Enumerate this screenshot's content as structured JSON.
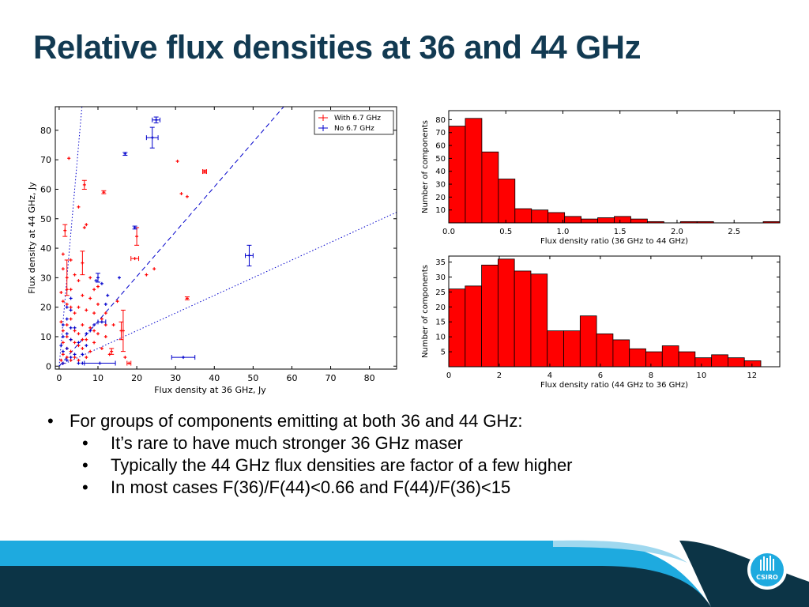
{
  "slide": {
    "title": "Relative flux densities at 36 and 44 GHz",
    "bullets": [
      {
        "level": 1,
        "text": "For groups of components emitting at both 36 and 44 GHz:"
      },
      {
        "level": 2,
        "text": "It’s rare to have much stronger 36 GHz maser"
      },
      {
        "level": 2,
        "text": "Typically the 44 GHz flux densities are factor of a few higher"
      },
      {
        "level": 2,
        "text": "In most cases F(36)/F(44)<0.66 and F(44)/F(36)<15"
      }
    ],
    "logo_text": "CSIRO",
    "colors": {
      "title": "#123a52",
      "bar": "#ff0000",
      "with": "#ff0000",
      "without": "#0000cc",
      "footer_dark": "#0c3446",
      "footer_light": "#1eaadf"
    }
  },
  "chart_data": [
    {
      "type": "scatter",
      "xlabel": "Flux density at 36 GHz, Jy",
      "ylabel": "Flux density at 44 GHz, Jy",
      "xlim": [
        -1,
        87
      ],
      "ylim": [
        -1,
        88
      ],
      "xticks": [
        0,
        10,
        20,
        30,
        40,
        50,
        60,
        70,
        80
      ],
      "yticks": [
        0,
        10,
        20,
        30,
        40,
        50,
        60,
        70,
        80
      ],
      "lines": [
        {
          "style": "dotted",
          "slope": 15
        },
        {
          "style": "dashed",
          "slope": 1.52
        },
        {
          "style": "dotted",
          "slope": 0.6
        }
      ],
      "legend": {
        "position": "top-right"
      },
      "series": [
        {
          "name": "With 6.7 GHz",
          "color": "#ff0000",
          "points": [
            [
              2.5,
              70.5,
              0,
              0
            ],
            [
              6.5,
              61.5,
              0,
              1.5
            ],
            [
              11.5,
              59,
              0,
              0.5
            ],
            [
              5,
              54,
              0,
              0
            ],
            [
              7,
              48,
              0,
              0
            ],
            [
              6.5,
              47,
              0,
              0
            ],
            [
              1.5,
              46,
              0,
              2
            ],
            [
              20,
              44,
              0,
              3
            ],
            [
              19.5,
              36.5,
              1,
              0
            ],
            [
              24.5,
              33,
              0,
              0
            ],
            [
              22.5,
              31,
              0,
              0
            ],
            [
              6,
              35,
              0,
              4
            ],
            [
              2,
              30,
              0,
              6
            ],
            [
              8,
              30,
              0,
              0
            ],
            [
              10,
              27,
              0,
              0
            ],
            [
              33,
              23,
              0,
              0.5
            ],
            [
              30.5,
              69.5,
              0,
              0
            ],
            [
              37.5,
              66,
              0.5,
              0.5
            ],
            [
              31.5,
              58.5,
              0,
              0
            ],
            [
              33,
              57.5,
              0,
              0
            ],
            [
              16,
              12,
              0,
              3
            ],
            [
              16.5,
              12,
              0,
              7
            ],
            [
              13.5,
              5,
              0,
              1
            ],
            [
              18,
              1,
              0.5,
              0
            ],
            [
              1,
              38,
              0,
              0
            ],
            [
              3,
              36,
              0,
              0
            ],
            [
              4,
              31,
              0,
              0
            ],
            [
              5,
              29,
              0,
              0
            ],
            [
              3,
              26,
              0,
              0
            ],
            [
              1,
              22,
              0,
              0
            ],
            [
              2,
              21,
              0,
              0
            ],
            [
              5,
              20,
              0,
              0
            ],
            [
              7,
              19,
              0,
              0
            ],
            [
              9,
              18,
              0,
              0
            ],
            [
              11,
              16,
              0,
              0
            ],
            [
              12,
              18,
              0,
              0
            ],
            [
              14,
              14,
              0,
              0
            ],
            [
              6,
              24,
              0,
              0
            ],
            [
              8,
              23,
              0,
              0
            ],
            [
              4,
              18,
              0,
              0
            ],
            [
              3,
              16,
              0,
              0
            ],
            [
              2,
              14,
              0,
              0
            ],
            [
              6,
              14,
              0,
              0
            ],
            [
              8,
              13,
              0,
              0
            ],
            [
              10,
              11,
              0,
              0
            ],
            [
              12,
              10,
              0,
              0
            ],
            [
              4,
              12,
              0,
              0
            ],
            [
              5,
              11,
              0,
              0
            ],
            [
              7,
              9,
              0,
              0
            ],
            [
              9,
              8,
              0,
              0
            ],
            [
              11,
              6,
              0,
              0
            ],
            [
              13,
              4,
              0,
              0
            ],
            [
              1,
              12,
              0,
              0
            ],
            [
              2,
              10,
              0,
              0
            ],
            [
              3,
              9,
              0,
              0
            ],
            [
              4,
              8,
              0,
              0
            ],
            [
              5,
              7,
              0,
              0
            ],
            [
              6,
              6,
              0,
              0
            ],
            [
              1,
              8,
              0,
              0
            ],
            [
              2,
              6,
              0,
              0
            ],
            [
              3,
              5,
              0,
              0
            ],
            [
              1,
              4,
              0,
              0
            ],
            [
              2,
              3,
              0,
              0
            ],
            [
              0.5,
              2,
              0,
              0
            ],
            [
              1,
              1,
              0,
              0
            ],
            [
              3,
              2,
              0,
              0
            ],
            [
              4,
              3,
              0,
              0
            ],
            [
              5,
              2,
              0,
              0
            ],
            [
              7,
              3,
              0,
              0
            ],
            [
              8,
              5,
              0,
              0
            ],
            [
              6,
              9,
              0,
              0
            ],
            [
              9,
              12,
              0,
              0
            ],
            [
              3,
              20,
              0,
              0
            ],
            [
              2,
              26,
              0,
              0
            ],
            [
              15,
              22,
              0,
              0
            ],
            [
              0.5,
              15,
              0,
              0
            ],
            [
              0.5,
              25,
              0,
              0
            ],
            [
              1,
              33,
              0,
              0
            ],
            [
              17,
              3,
              0,
              0
            ],
            [
              12,
              14,
              0,
              0
            ],
            [
              10,
              21,
              0,
              0
            ],
            [
              9,
              26,
              0,
              0
            ]
          ]
        },
        {
          "name": "No 6.7 GHz",
          "color": "#0000cc",
          "points": [
            [
              25,
              83.5,
              1,
              1
            ],
            [
              24,
              77.5,
              1.5,
              3.5
            ],
            [
              17,
              72,
              0,
              0.5
            ],
            [
              19.5,
              47,
              0,
              0.5
            ],
            [
              49,
              37.5,
              1,
              3.5
            ],
            [
              15.5,
              30,
              0,
              0
            ],
            [
              10,
              30,
              0,
              1.5
            ],
            [
              9.5,
              29,
              0,
              0
            ],
            [
              11,
              28,
              0,
              0
            ],
            [
              12.5,
              24,
              0,
              0
            ],
            [
              3,
              23,
              0,
              0
            ],
            [
              12,
              21,
              0,
              0
            ],
            [
              2,
              20,
              0,
              0
            ],
            [
              3,
              19,
              0,
              0
            ],
            [
              11,
              15,
              1,
              0
            ],
            [
              9,
              14,
              0,
              0
            ],
            [
              4,
              13,
              0,
              0
            ],
            [
              2,
              11,
              0,
              0
            ],
            [
              1,
              10,
              0,
              0
            ],
            [
              3,
              9,
              0,
              0
            ],
            [
              5,
              8,
              0,
              0
            ],
            [
              7,
              7,
              0,
              0
            ],
            [
              2,
              6,
              0,
              0
            ],
            [
              1,
              5,
              0,
              0
            ],
            [
              4,
              4,
              0,
              0
            ],
            [
              6,
              4,
              0,
              0
            ],
            [
              3,
              3,
              0,
              0
            ],
            [
              2,
              2,
              0,
              0
            ],
            [
              1,
              1,
              0,
              0
            ],
            [
              5,
              1,
              0,
              0
            ],
            [
              10.5,
              1,
              4,
              0
            ],
            [
              32,
              3,
              3,
              0
            ],
            [
              6,
              1,
              0,
              0
            ],
            [
              1,
              14,
              0,
              0
            ],
            [
              2,
              16,
              0,
              0
            ],
            [
              3,
              13,
              0,
              0
            ],
            [
              0.5,
              7,
              0,
              0
            ],
            [
              7,
              11,
              0,
              0
            ],
            [
              8,
              12,
              0,
              0
            ]
          ]
        }
      ]
    },
    {
      "type": "bar",
      "xlabel": "Flux density ratio (36 GHz to 44 GHz)",
      "ylabel": "Number of components",
      "xlim": [
        0,
        2.9
      ],
      "ylim": [
        0,
        87
      ],
      "xticks": [
        "0.0",
        "0.5",
        "1.0",
        "1.5",
        "2.0",
        "2.5"
      ],
      "yticks": [
        "10",
        "20",
        "30",
        "40",
        "50",
        "60",
        "70",
        "80"
      ],
      "bin_width": 0.145,
      "values": [
        75,
        81,
        55,
        34,
        11,
        10,
        8,
        5,
        3,
        4,
        5,
        3,
        1,
        0,
        1,
        1,
        0,
        0,
        0,
        1
      ]
    },
    {
      "type": "bar",
      "xlabel": "Flux density ratio (44 GHz to 36 GHz)",
      "ylabel": "Number of components",
      "xlim": [
        0,
        13.1
      ],
      "ylim": [
        0,
        37
      ],
      "xticks": [
        "0",
        "2",
        "4",
        "6",
        "8",
        "10",
        "12"
      ],
      "yticks": [
        "5",
        "10",
        "15",
        "20",
        "25",
        "30",
        "35"
      ],
      "bin_width": 0.65,
      "values": [
        26,
        27,
        34,
        36,
        32,
        31,
        12,
        12,
        17,
        11,
        9,
        6,
        5,
        7,
        5,
        3,
        4,
        3,
        2
      ]
    }
  ]
}
